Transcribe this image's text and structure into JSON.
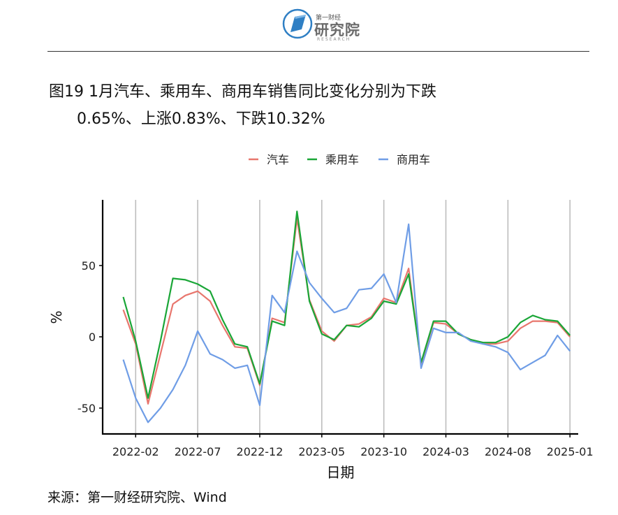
{
  "header": {
    "logo_small": "第一财经",
    "logo_big": "研究院",
    "logo_en": "RESEARCH"
  },
  "title": {
    "line1": "图19 1月汽车、乘用车、商用车销售同比变化分别为下跌",
    "line2": "0.65%、上涨0.83%、下跌10.32%"
  },
  "source": "来源：第一财经研究院、Wind",
  "colors": {
    "汽车": "#e8766d",
    "乘用车": "#1aa637",
    "商用车": "#6f9de6",
    "grid": "#bdbdbd"
  },
  "chart_data": {
    "type": "line",
    "xlabel": "日期",
    "ylabel": "%",
    "x": [
      "2022-01",
      "2022-02",
      "2022-03",
      "2022-04",
      "2022-05",
      "2022-06",
      "2022-07",
      "2022-08",
      "2022-09",
      "2022-10",
      "2022-11",
      "2022-12",
      "2023-01",
      "2023-02",
      "2023-03",
      "2023-04",
      "2023-05",
      "2023-06",
      "2023-07",
      "2023-08",
      "2023-09",
      "2023-10",
      "2023-11",
      "2023-12",
      "2024-01",
      "2024-02",
      "2024-03",
      "2024-04",
      "2024-05",
      "2024-06",
      "2024-07",
      "2024-08",
      "2024-09",
      "2024-10",
      "2024-11",
      "2024-12",
      "2025-01"
    ],
    "x_ticks": [
      "2022-02",
      "2022-07",
      "2022-12",
      "2023-05",
      "2023-10",
      "2024-03",
      "2024-08",
      "2025-01"
    ],
    "y_ticks": [
      -50,
      0,
      50
    ],
    "ylim": [
      -68,
      95
    ],
    "grid": "vertical",
    "legend_position": "top",
    "series": [
      {
        "name": "汽车",
        "values": [
          19,
          -5,
          -47,
          -12,
          23,
          29,
          32,
          25,
          8,
          -7,
          -8,
          -34,
          13,
          10,
          83,
          26,
          4,
          -3,
          8,
          9,
          14,
          27,
          24,
          48,
          -19,
          10,
          9,
          2,
          -2,
          -5,
          -5,
          -3,
          6,
          11,
          11,
          10,
          0
        ]
      },
      {
        "name": "乘用车",
        "values": [
          28,
          -3,
          -43,
          -3,
          41,
          40,
          37,
          32,
          12,
          -5,
          -7,
          -33,
          11,
          8,
          88,
          25,
          2,
          -2,
          8,
          7,
          13,
          25,
          23,
          44,
          -18,
          11,
          11,
          2,
          -2,
          -4,
          -4,
          0,
          10,
          15,
          12,
          11,
          1
        ]
      },
      {
        "name": "商用车",
        "values": [
          -16,
          -43,
          -60,
          -50,
          -37,
          -20,
          4,
          -12,
          -16,
          -22,
          -20,
          -48,
          29,
          17,
          60,
          38,
          27,
          17,
          20,
          33,
          34,
          44,
          24,
          79,
          -22,
          6,
          3,
          3,
          -3,
          -5,
          -7,
          -11,
          -23,
          -18,
          -13,
          1,
          -10
        ]
      }
    ]
  }
}
